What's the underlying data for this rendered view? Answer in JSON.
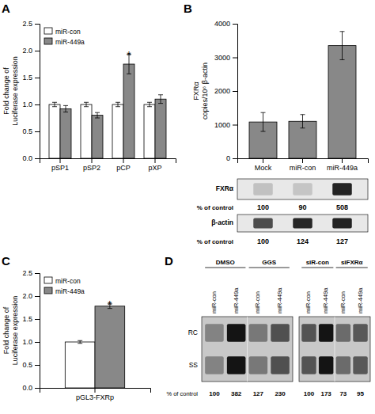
{
  "chart_data": [
    {
      "type": "bar",
      "title": "A",
      "categories": [
        "pSP1",
        "pSP2",
        "pCP",
        "pXP"
      ],
      "series": [
        {
          "name": "miR-con",
          "color": "#ffffff",
          "values": [
            1.0,
            1.0,
            1.0,
            1.0
          ],
          "errors": [
            0.04,
            0.04,
            0.04,
            0.04
          ]
        },
        {
          "name": "miR-449a",
          "color": "#888888",
          "values": [
            0.92,
            0.8,
            1.75,
            1.1
          ],
          "errors": [
            0.06,
            0.05,
            0.18,
            0.08
          ]
        }
      ],
      "ylabel": "Fold change of\nLuciferase expression",
      "ylim": [
        0,
        2.5
      ],
      "yticks": [
        {
          "value": 0,
          "label": "0.0"
        },
        0.5,
        {
          "value": 1,
          "label": "1.0"
        },
        1.5,
        {
          "value": 2,
          "label": "2.0"
        },
        2.5
      ],
      "legend": "upper left",
      "annotations": [
        {
          "text": "*",
          "category": "pCP",
          "series": "miR-449a"
        }
      ]
    },
    {
      "type": "bar",
      "title": "B",
      "categories": [
        "Mock",
        "miR-con",
        "miR-449a"
      ],
      "values": [
        1080,
        1100,
        3350
      ],
      "errors": [
        280,
        200,
        420
      ],
      "color": "#888888",
      "ylabel": "FXRα\ncopies/10⁶ β-actin",
      "ylim": [
        0,
        4000
      ],
      "yticks": [
        0,
        1000,
        2000,
        3000,
        4000
      ],
      "blots": [
        {
          "name": "FXRα",
          "label": "% of control",
          "values": [
            100,
            90,
            508
          ]
        },
        {
          "name": "β-actin",
          "label": "% of control",
          "values": [
            100,
            124,
            127
          ]
        }
      ]
    },
    {
      "type": "bar",
      "title": "C",
      "categories": [
        "pGL3-FXRp"
      ],
      "series": [
        {
          "name": "miR-con",
          "color": "#ffffff",
          "values": [
            1.0
          ],
          "errors": [
            0.03
          ]
        },
        {
          "name": "miR-449a",
          "color": "#888888",
          "values": [
            1.78
          ],
          "errors": [
            0.05
          ]
        }
      ],
      "ylabel": "Fold change of\nLuciferase expression",
      "ylim": [
        0,
        2.5
      ],
      "yticks": [
        {
          "value": 0,
          "label": "0.0"
        },
        0.5,
        {
          "value": 1,
          "label": "1.0"
        },
        1.5,
        {
          "value": 2,
          "label": "2.0"
        },
        2.5
      ],
      "legend": "upper left",
      "annotations": [
        {
          "text": "*",
          "category": "pGL3-FXRp",
          "series": "miR-449a"
        }
      ]
    },
    {
      "type": "blot",
      "title": "D",
      "row_labels": [
        "RC",
        "SS"
      ],
      "label": "% of control",
      "blots": [
        {
          "groups": [
            "DMSO",
            "GGS"
          ],
          "categories": [
            "miR-con",
            "miR-449a",
            "miR-con",
            "miR-449a"
          ],
          "values": [
            100,
            382,
            127,
            230
          ]
        },
        {
          "groups": [
            "siR-con",
            "siFXRα"
          ],
          "categories": [
            "miR-con",
            "miR-449a",
            "miR-con",
            "miR-449a"
          ],
          "values": [
            100,
            173,
            73,
            95
          ]
        }
      ]
    }
  ]
}
